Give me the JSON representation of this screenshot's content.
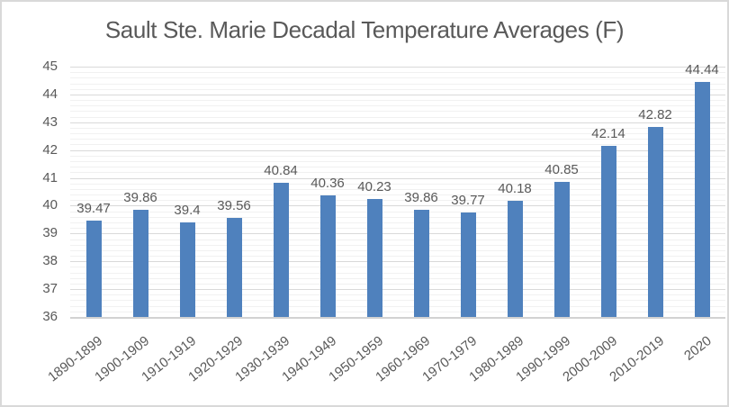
{
  "chart_data": {
    "type": "bar",
    "title": "Sault Ste. Marie Decadal Temperature Averages (F)",
    "categories": [
      "1890-1899",
      "1900-1909",
      "1910-1919",
      "1920-1929",
      "1930-1939",
      "1940-1949",
      "1950-1959",
      "1960-1969",
      "1970-1979",
      "1980-1989",
      "1990-1999",
      "2000-2009",
      "2010-2019",
      "2020"
    ],
    "values": [
      39.47,
      39.86,
      39.4,
      39.56,
      40.84,
      40.36,
      40.23,
      39.86,
      39.77,
      40.18,
      40.85,
      42.14,
      42.82,
      44.44
    ],
    "value_labels": [
      "39.47",
      "39.86",
      "39.4",
      "39.56",
      "40.84",
      "40.36",
      "40.23",
      "39.86",
      "39.77",
      "40.18",
      "40.85",
      "42.14",
      "42.82",
      "44.44"
    ],
    "xlabel": "",
    "ylabel": "",
    "ylim": [
      36,
      45
    ],
    "yticks": [
      36,
      37,
      38,
      39,
      40,
      41,
      42,
      43,
      44,
      45
    ],
    "major_grid_step": 1,
    "minor_grid_step": 0.2,
    "grid": true,
    "legend": false,
    "colors": {
      "bar_fill": "#4F81BD",
      "title_text": "#595959",
      "axis_text": "#595959",
      "data_label_text": "#595959",
      "major_gridline": "#D9D9D9",
      "minor_gridline": "#F1F1F1",
      "axis_line": "#D2D2D2",
      "frame_border": "#D9D9D9",
      "background": "#FFFFFF"
    }
  }
}
